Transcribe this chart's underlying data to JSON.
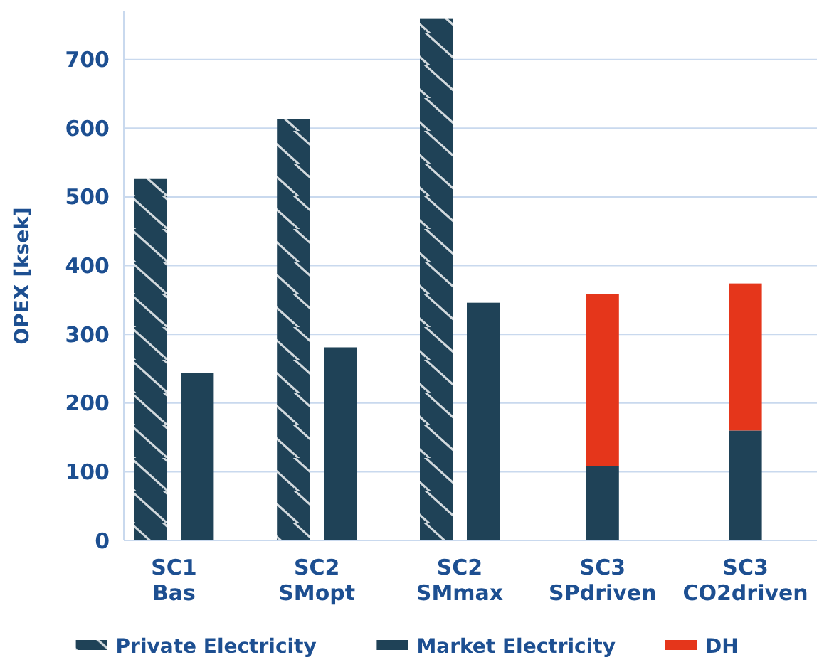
{
  "chart_data": {
    "type": "bar",
    "ylabel": "OPEX [ksek]",
    "categories": [
      "SC1\nBas",
      "SC2\nSMopt",
      "SC2\nSMmax",
      "SC3\nSPdriven",
      "SC3\nCO2driven"
    ],
    "series": [
      {
        "name": "Private Electricity",
        "color": "#1f4257",
        "values": [
          526,
          613,
          759,
          null,
          null
        ]
      },
      {
        "name": "Market Electricity",
        "color": "#1f4257",
        "values": [
          244,
          281,
          346,
          108,
          160
        ]
      },
      {
        "name": "DH",
        "color": "#e5361b",
        "values": [
          null,
          null,
          null,
          251,
          214
        ],
        "base": [
          null,
          null,
          null,
          108,
          160
        ]
      }
    ],
    "ylim": [
      0,
      770
    ],
    "yticks": [
      0,
      100,
      200,
      300,
      400,
      500,
      600,
      700
    ],
    "grid": "y",
    "legend": "bottom"
  }
}
